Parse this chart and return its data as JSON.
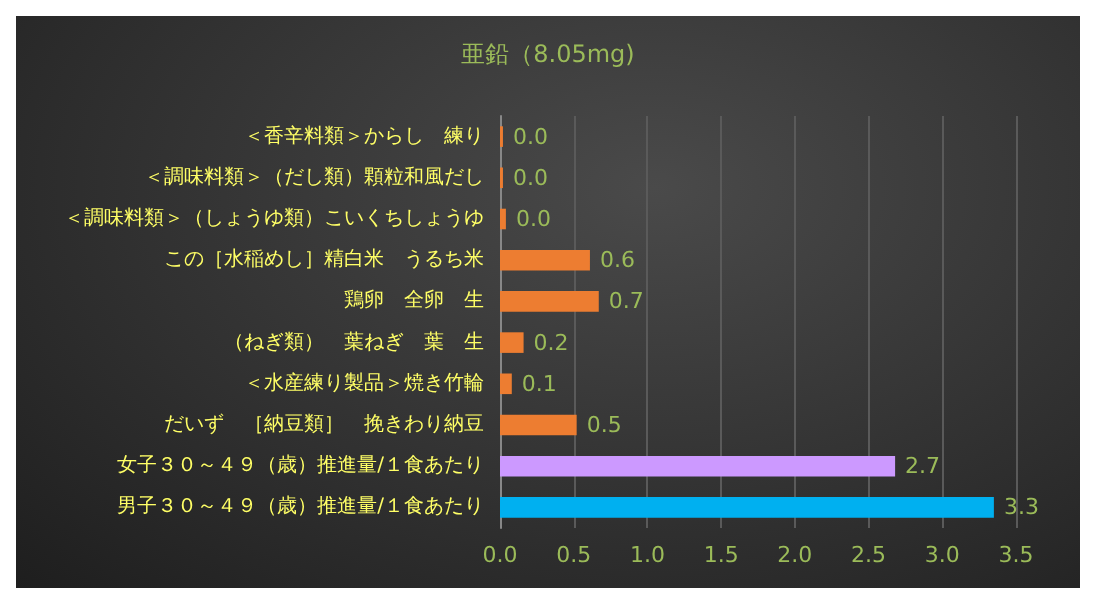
{
  "chart_data": {
    "type": "bar",
    "orientation": "horizontal",
    "title": "亜鉛（8.05mg)",
    "categories": [
      "＜香辛料類＞からし　練り",
      "＜調味料類＞（だし類）顆粒和風だし",
      "＜調味料類＞（しょうゆ類）こいくちしょうゆ",
      "この［水稲めし］精白米　うるち米",
      "鶏卵　全卵　生",
      "（ねぎ類）　葉ねぎ　葉　生",
      "＜水産練り製品＞焼き竹輪",
      "だいず　［納豆類］　挽きわり納豆",
      "女子３０～４９（歳）推進量/１食あたり",
      "男子３０～４９（歳）推進量/１食あたり"
    ],
    "values": [
      0.02,
      0.02,
      0.04,
      0.61,
      0.67,
      0.16,
      0.08,
      0.52,
      2.68,
      3.35
    ],
    "value_labels": [
      "0.0",
      "0.0",
      "0.0",
      "0.6",
      "0.7",
      "0.2",
      "0.1",
      "0.5",
      "2.7",
      "3.3"
    ],
    "colors": [
      "#ed7d31",
      "#ed7d31",
      "#ed7d31",
      "#ed7d31",
      "#ed7d31",
      "#ed7d31",
      "#ed7d31",
      "#ed7d31",
      "#cc99ff",
      "#00b0f0"
    ],
    "xlim": [
      0,
      3.5
    ],
    "xticks": [
      {
        "value": 0,
        "label": "0.0"
      },
      0.5,
      {
        "value": 1,
        "label": "1.0"
      },
      1.5,
      {
        "value": 2,
        "label": "2.0"
      },
      2.5,
      {
        "value": 3,
        "label": "3.0"
      },
      3.5
    ],
    "grid": "x"
  }
}
